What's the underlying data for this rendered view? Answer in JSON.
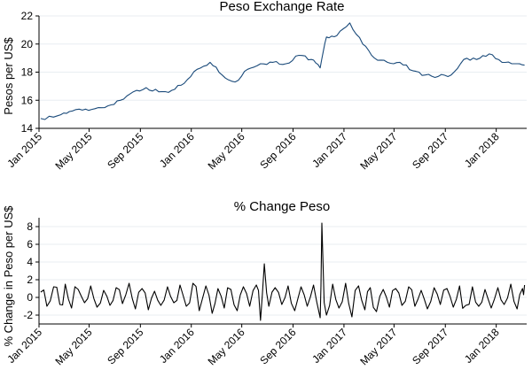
{
  "chart_data": [
    {
      "type": "line",
      "title": "Peso Exchange Rate",
      "xlabel": "",
      "ylabel": "Pesos per US$",
      "ylim": [
        14,
        22
      ],
      "yticks": [
        14,
        16,
        18,
        20,
        22
      ],
      "xticks": [
        "Jan 2015",
        "May 2015",
        "Sep 2015",
        "Jan 2016",
        "May 2016",
        "Sep 2016",
        "Jan 2017",
        "May 2017",
        "Sep 2017",
        "Jan 2018"
      ],
      "x_range": [
        "2015-01-01",
        "2018-03-15"
      ],
      "color": "#1a4a7a",
      "grid": true,
      "series": [
        {
          "x": [
            "2015-01-05",
            "2015-02-15",
            "2015-03-15",
            "2015-04-15",
            "2015-05-15",
            "2015-06-15",
            "2015-07-15",
            "2015-08-15",
            "2015-09-15",
            "2015-10-15",
            "2015-11-15",
            "2015-12-15",
            "2016-01-15",
            "2016-02-15",
            "2016-03-15",
            "2016-04-15",
            "2016-05-15",
            "2016-06-15",
            "2016-07-15",
            "2016-08-15",
            "2016-09-15",
            "2016-10-15",
            "2016-11-05",
            "2016-11-20",
            "2016-12-15",
            "2017-01-15",
            "2017-02-15",
            "2017-03-15",
            "2017-04-15",
            "2017-05-15",
            "2017-06-15",
            "2017-07-15",
            "2017-08-15",
            "2017-09-15",
            "2017-10-15",
            "2017-11-15",
            "2017-12-15",
            "2018-01-15",
            "2018-02-15",
            "2018-03-10"
          ],
          "y": [
            14.7,
            14.9,
            15.2,
            15.3,
            15.4,
            15.6,
            16.0,
            16.6,
            16.9,
            16.6,
            16.7,
            17.2,
            18.2,
            18.7,
            17.8,
            17.3,
            18.2,
            18.6,
            18.7,
            18.6,
            19.2,
            18.9,
            18.3,
            20.5,
            20.6,
            21.5,
            20.0,
            19.0,
            18.7,
            18.7,
            18.1,
            17.8,
            17.7,
            17.8,
            18.9,
            18.9,
            19.3,
            18.7,
            18.6,
            18.5
          ]
        }
      ]
    },
    {
      "type": "line",
      "title": "% Change Peso",
      "xlabel": "",
      "ylabel": "% Change in Peso per US$",
      "ylim": [
        -3,
        9
      ],
      "yticks": [
        -2,
        0,
        2,
        4,
        6,
        8
      ],
      "xticks": [
        "Jan 2015",
        "May 2015",
        "Sep 2015",
        "Jan 2016",
        "May 2016",
        "Sep 2016",
        "Jan 2017",
        "May 2017",
        "Sep 2017",
        "Jan 2018"
      ],
      "x_range": [
        "2015-01-01",
        "2018-03-15"
      ],
      "color": "#000000",
      "grid": true,
      "series": [
        {
          "x": [
            "2015-01-05",
            "2015-01-20",
            "2015-02-05",
            "2015-02-20",
            "2015-03-05",
            "2015-03-20",
            "2015-04-05",
            "2015-04-20",
            "2015-05-05",
            "2015-05-20",
            "2015-06-05",
            "2015-06-20",
            "2015-07-05",
            "2015-07-20",
            "2015-08-05",
            "2015-08-20",
            "2015-09-05",
            "2015-09-20",
            "2015-10-05",
            "2015-10-20",
            "2015-11-05",
            "2015-11-20",
            "2015-12-05",
            "2015-12-20",
            "2016-01-05",
            "2016-01-20",
            "2016-02-05",
            "2016-02-20",
            "2016-03-05",
            "2016-03-20",
            "2016-04-05",
            "2016-04-20",
            "2016-05-05",
            "2016-05-20",
            "2016-06-05",
            "2016-06-15",
            "2016-06-24",
            "2016-07-05",
            "2016-07-20",
            "2016-08-05",
            "2016-08-20",
            "2016-09-05",
            "2016-09-20",
            "2016-10-05",
            "2016-10-20",
            "2016-11-05",
            "2016-11-09",
            "2016-11-20",
            "2016-12-05",
            "2016-12-20",
            "2017-01-05",
            "2017-01-20",
            "2017-02-05",
            "2017-02-20",
            "2017-03-05",
            "2017-03-20",
            "2017-04-05",
            "2017-04-20",
            "2017-05-05",
            "2017-05-20",
            "2017-06-05",
            "2017-06-20",
            "2017-07-05",
            "2017-07-20",
            "2017-08-05",
            "2017-08-20",
            "2017-09-05",
            "2017-09-20",
            "2017-10-05",
            "2017-10-20",
            "2017-11-05",
            "2017-11-20",
            "2017-12-05",
            "2017-12-20",
            "2018-01-05",
            "2018-01-20",
            "2018-02-05",
            "2018-02-20",
            "2018-03-05",
            "2018-03-10"
          ],
          "y": [
            0.6,
            -1.0,
            1.2,
            -0.8,
            1.5,
            -1.2,
            0.9,
            -0.6,
            1.3,
            -1.1,
            0.8,
            -0.9,
            1.1,
            -0.7,
            1.6,
            -1.3,
            1.0,
            -1.4,
            0.7,
            -0.9,
            1.2,
            -0.6,
            1.4,
            -1.0,
            1.6,
            -1.5,
            1.3,
            -1.8,
            1.0,
            -1.2,
            0.9,
            -1.5,
            1.2,
            -1.0,
            1.4,
            -2.6,
            3.8,
            -1.0,
            1.1,
            -0.8,
            1.3,
            -1.5,
            1.2,
            -1.0,
            1.4,
            -2.3,
            8.4,
            -2.0,
            1.5,
            -1.2,
            1.6,
            -2.2,
            1.3,
            -1.4,
            1.1,
            -1.6,
            0.9,
            -1.1,
            1.0,
            -0.9,
            1.2,
            -1.0,
            0.8,
            -1.3,
            1.1,
            -0.8,
            1.0,
            -1.1,
            1.3,
            -0.9,
            1.2,
            -1.0,
            0.9,
            -1.2,
            1.1,
            -0.8,
            1.5,
            -1.3,
            1.0,
            1.4
          ]
        }
      ]
    }
  ]
}
